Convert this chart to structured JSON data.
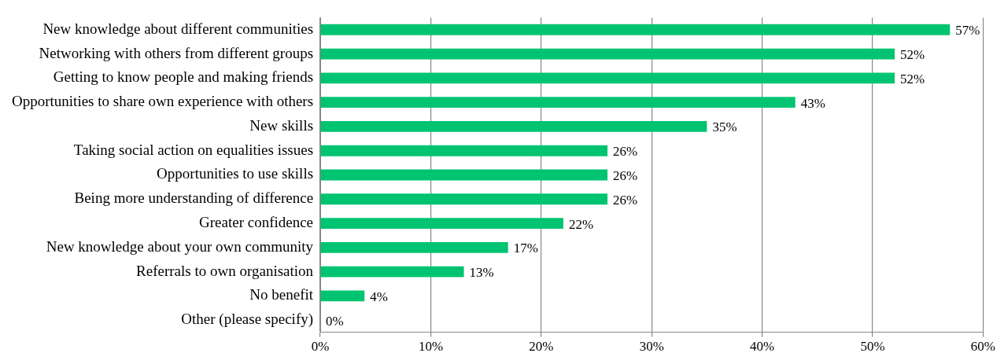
{
  "chart_data": {
    "type": "bar",
    "orientation": "horizontal",
    "categories": [
      "New knowledge about different communities",
      "Networking with others from different groups",
      "Getting to know people and making friends",
      "Opportunities to share own experience with others",
      "New skills",
      "Taking social action on equalities issues",
      "Opportunities to use skills",
      "Being more understanding of difference",
      "Greater confidence",
      "New knowledge about your own community",
      "Referrals to own organisation",
      "No benefit",
      "Other (please specify)"
    ],
    "values": [
      57,
      52,
      52,
      43,
      35,
      26,
      26,
      26,
      22,
      17,
      13,
      4,
      0
    ],
    "value_labels": [
      "57%",
      "52%",
      "52%",
      "43%",
      "35%",
      "26%",
      "26%",
      "26%",
      "22%",
      "17%",
      "13%",
      "4%",
      "0%"
    ],
    "color": "#00c472",
    "xlim": [
      0,
      60
    ],
    "xticks": [
      {
        "value": 0,
        "label": "0%"
      },
      {
        "value": 10,
        "label": "10%"
      },
      {
        "value": 20,
        "label": "20%"
      },
      {
        "value": 30,
        "label": "30%"
      },
      {
        "value": 40,
        "label": "40%"
      },
      {
        "value": 50,
        "label": "50%"
      },
      {
        "value": 60,
        "label": "60%"
      }
    ],
    "grid": "x"
  }
}
